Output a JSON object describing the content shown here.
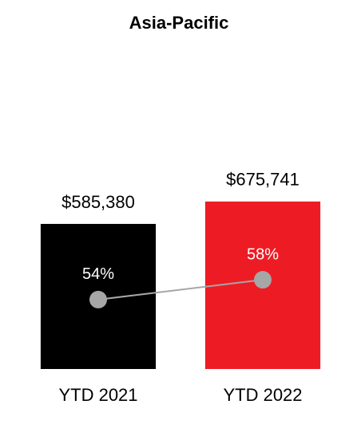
{
  "chart_data": {
    "type": "bar",
    "title": "Asia-Pacific",
    "categories": [
      "YTD 2021",
      "YTD 2022"
    ],
    "ylim": [
      0,
      1000000
    ],
    "y2lim": [
      40,
      90
    ],
    "series": [
      {
        "type": "bar",
        "colors": [
          "#000000",
          "#ed1c24"
        ],
        "values": [
          585380,
          675741
        ],
        "value_labels": [
          "$585,380",
          "$675,741"
        ]
      },
      {
        "type": "line",
        "axis": "y2",
        "color": "#a6a6a6",
        "label_color": "#ffffff",
        "values": [
          54,
          58
        ],
        "value_labels": [
          "54%",
          "58%"
        ]
      }
    ]
  }
}
